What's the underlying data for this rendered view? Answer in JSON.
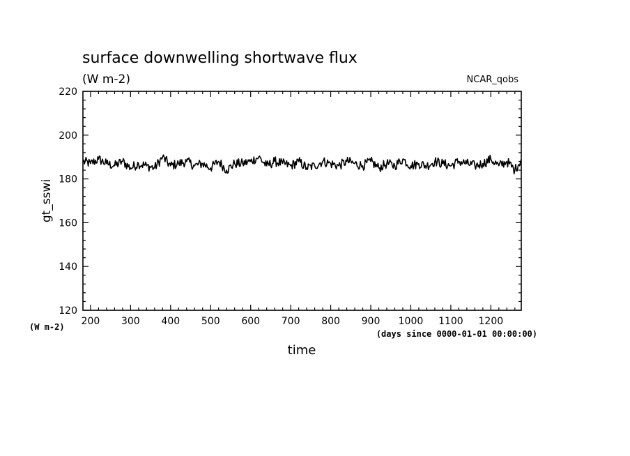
{
  "chart_data": {
    "type": "line",
    "title": "surface downwelling shortwave flux",
    "subtitle": "(W m-2)",
    "source_label": "NCAR_qobs",
    "xlabel": "time",
    "x_units": "(days since 0000-01-01 00:00:00)",
    "ylabel": "gt_sswi",
    "y_units": "(W m-2)",
    "xlim": [
      181,
      1276
    ],
    "ylim": [
      120,
      220
    ],
    "x_ticks": [
      "200",
      "300",
      "400",
      "500",
      "600",
      "700",
      "800",
      "900",
      "1000",
      "1100",
      "1200"
    ],
    "y_ticks": [
      "120",
      "140",
      "160",
      "180",
      "200",
      "220"
    ],
    "grid": false,
    "series": [
      {
        "color": "#000000",
        "x": [
          181,
          200,
          220,
          240,
          260,
          280,
          300,
          320,
          340,
          360,
          380,
          400,
          420,
          440,
          460,
          480,
          500,
          520,
          540,
          560,
          580,
          600,
          620,
          640,
          660,
          680,
          700,
          720,
          740,
          760,
          780,
          800,
          820,
          840,
          860,
          880,
          900,
          920,
          940,
          960,
          980,
          1000,
          1020,
          1040,
          1060,
          1080,
          1100,
          1120,
          1140,
          1160,
          1180,
          1200,
          1220,
          1240,
          1260,
          1276
        ],
        "y": [
          188,
          187,
          189,
          187,
          186,
          188,
          185,
          187,
          186,
          185,
          190,
          186,
          187,
          188,
          186,
          187,
          185,
          188,
          184,
          187,
          187,
          188,
          190,
          186,
          188,
          187,
          186,
          188,
          185,
          186,
          188,
          187,
          186,
          188,
          187,
          186,
          188,
          185,
          187,
          186,
          189,
          186,
          187,
          186,
          188,
          187,
          186,
          188,
          187,
          186,
          187,
          189,
          186,
          188,
          184,
          189
        ]
      }
    ]
  }
}
